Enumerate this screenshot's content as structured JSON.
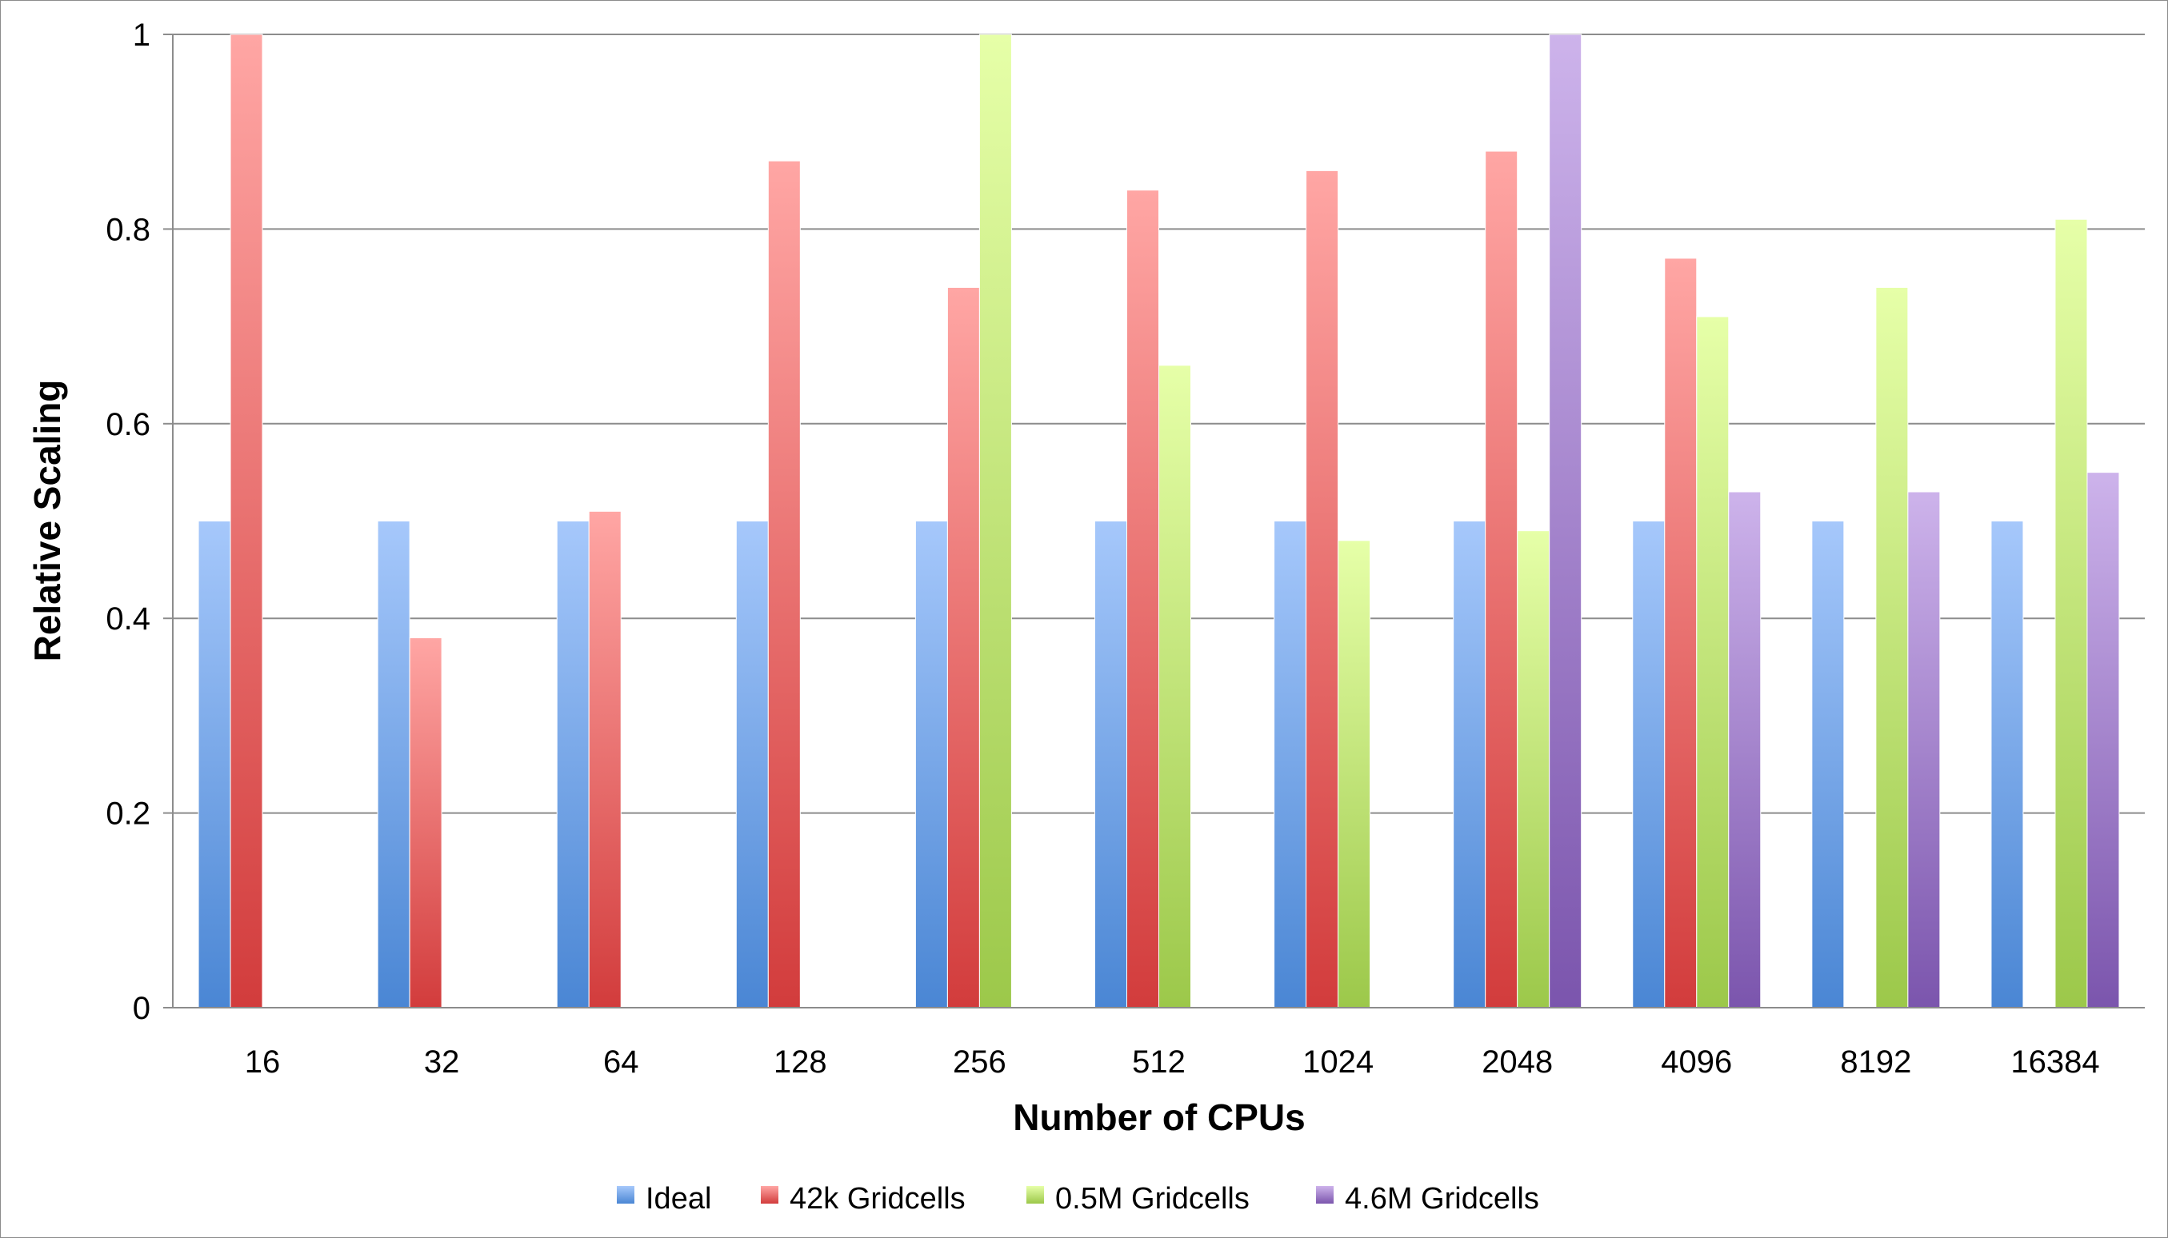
{
  "chart_data": {
    "type": "bar",
    "title": "",
    "xlabel": "Number of CPUs",
    "ylabel": "Relative Scaling",
    "ylim": [
      0,
      1
    ],
    "yticks": [
      "0",
      "0.2",
      "0.4",
      "0.6",
      "0.8",
      "1"
    ],
    "ytick_values": [
      0,
      0.2,
      0.4,
      0.6,
      0.8,
      1
    ],
    "grid": true,
    "legend_position": "bottom",
    "categories": [
      "16",
      "32",
      "64",
      "128",
      "256",
      "512",
      "1024",
      "2048",
      "4096",
      "8192",
      "16384"
    ],
    "series": [
      {
        "name": "Ideal",
        "color": "#4a86d4",
        "color_light": "#a6c8fb",
        "values": [
          0.5,
          0.5,
          0.5,
          0.5,
          0.5,
          0.5,
          0.5,
          0.5,
          0.5,
          0.5,
          0.5
        ]
      },
      {
        "name": "42k Gridcells",
        "color": "#d23c3c",
        "color_light": "#ffa6a4",
        "values": [
          1.0,
          0.38,
          0.51,
          0.87,
          0.74,
          0.84,
          0.86,
          0.88,
          0.77,
          null,
          null
        ]
      },
      {
        "name": "0.5M Gridcells",
        "color": "#9cc84a",
        "color_light": "#e6ffa8",
        "values": [
          null,
          null,
          null,
          null,
          1.0,
          0.66,
          0.48,
          0.49,
          0.71,
          0.74,
          0.81
        ]
      },
      {
        "name": "4.6M Gridcells",
        "color": "#7b55ad",
        "color_light": "#cdb3eb",
        "values": [
          null,
          null,
          null,
          null,
          null,
          null,
          null,
          1.0,
          0.53,
          0.53,
          0.55
        ]
      }
    ]
  }
}
